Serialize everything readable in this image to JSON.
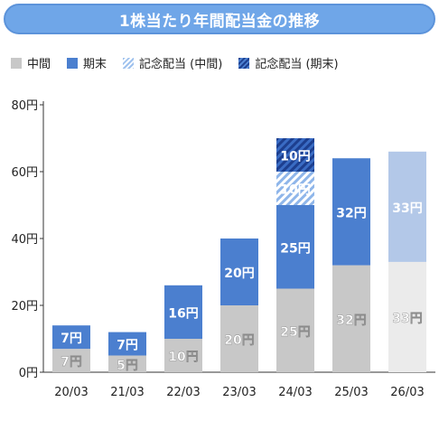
{
  "title": "1株当たり年間配当金の推移",
  "legend": [
    {
      "label": "中間",
      "color": "#c8c8c8",
      "pattern": "solid"
    },
    {
      "label": "期末",
      "color": "#4b7fcf",
      "pattern": "solid"
    },
    {
      "label": "記念配当 (中間)",
      "color": "#9fc2ee",
      "pattern": "stripe-light"
    },
    {
      "label": "記念配当 (期末)",
      "color": "#1d3f8f",
      "pattern": "stripe-dark"
    }
  ],
  "chart_data": {
    "type": "bar",
    "stacked": true,
    "ylim": [
      0,
      80
    ],
    "y_ticks": [
      "0円",
      "20円",
      "40円",
      "60円",
      "80円"
    ],
    "categories": [
      "20/03",
      "21/03",
      "22/03",
      "23/03",
      "24/03",
      "25/03",
      "26/03"
    ],
    "series": [
      {
        "name": "中間",
        "values": [
          7,
          5,
          10,
          20,
          25,
          32,
          33
        ],
        "labels": [
          "7円",
          "5円",
          "10円",
          "20円",
          "25円",
          "32円",
          "33円"
        ]
      },
      {
        "name": "期末",
        "values": [
          7,
          7,
          16,
          20,
          25,
          32,
          33
        ],
        "labels": [
          "7円",
          "7円",
          "16円",
          "20円",
          "25円",
          "32円",
          "33円"
        ]
      },
      {
        "name": "記念配当 (中間)",
        "values": [
          0,
          0,
          0,
          0,
          10,
          0,
          0
        ],
        "labels": [
          "",
          "",
          "",
          "",
          "10円",
          "",
          ""
        ]
      },
      {
        "name": "記念配当 (期末)",
        "values": [
          0,
          0,
          0,
          0,
          10,
          0,
          0
        ],
        "labels": [
          "",
          "",
          "",
          "",
          "10円",
          "",
          ""
        ]
      }
    ],
    "forecast_category": "26/03",
    "forecast_colors": {
      "中間": "#ebebeb",
      "期末": "#b3c8e8"
    },
    "gridlines": false
  }
}
